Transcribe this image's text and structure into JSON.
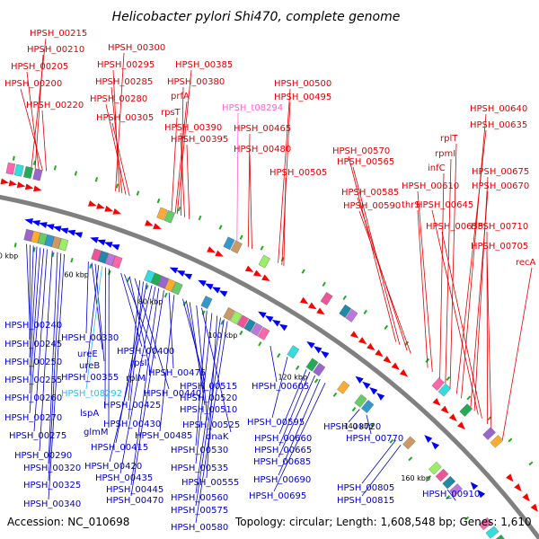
{
  "title": "Helicobacter pylori Shi470, complete genome",
  "footer": {
    "accession": "Accession: NC_010698",
    "summary": "Topology: circular; Length: 1,608,548 bp; Genes: 1,610"
  },
  "colors": {
    "forward_label": "#e00000",
    "reverse_label": "#0000cc",
    "rna_label_pink": "#ff66cc",
    "rna_label_cyan": "#33bbee",
    "forward_arrow": "#ff0000",
    "reverse_arrow": "#0000ff",
    "backbone": "#808080",
    "tick": "#22aa22"
  },
  "kbp_ticks": [
    {
      "text": "40 kbp"
    },
    {
      "text": "60 kbp"
    },
    {
      "text": "80 kbp"
    },
    {
      "text": "100 kbp"
    },
    {
      "text": "120 kbp"
    },
    {
      "text": "140 kbp"
    },
    {
      "text": "160 kbp"
    },
    {
      "text": "180 kbp"
    }
  ],
  "top_labels": [
    {
      "text": "HPSH_00215",
      "color": "forward"
    },
    {
      "text": "HPSH_00210",
      "color": "forward"
    },
    {
      "text": "HPSH_00205",
      "color": "forward"
    },
    {
      "text": "HPSH_00200",
      "color": "forward"
    },
    {
      "text": "HPSH_00220",
      "color": "forward"
    },
    {
      "text": "HPSH_00300",
      "color": "forward"
    },
    {
      "text": "HPSH_00295",
      "color": "forward"
    },
    {
      "text": "HPSH_00285",
      "color": "forward"
    },
    {
      "text": "HPSH_00280",
      "color": "forward"
    },
    {
      "text": "HPSH_00305",
      "color": "forward"
    },
    {
      "text": "HPSH_00385",
      "color": "forward"
    },
    {
      "text": "HPSH_00380",
      "color": "forward"
    },
    {
      "text": "prfA",
      "color": "forward"
    },
    {
      "text": "rpsT",
      "color": "forward"
    },
    {
      "text": "HPSH_00390",
      "color": "forward"
    },
    {
      "text": "HPSH_00395",
      "color": "forward"
    },
    {
      "text": "HPSH_t08294",
      "color": "pink"
    },
    {
      "text": "HPSH_00465",
      "color": "forward"
    },
    {
      "text": "HPSH_00480",
      "color": "forward"
    },
    {
      "text": "HPSH_00500",
      "color": "forward"
    },
    {
      "text": "HPSH_00495",
      "color": "forward"
    },
    {
      "text": "HPSH_00505",
      "color": "forward"
    },
    {
      "text": "HPSH_00570",
      "color": "forward"
    },
    {
      "text": "HPSH_00565",
      "color": "forward"
    },
    {
      "text": "HPSH_00585",
      "color": "forward"
    },
    {
      "text": "HPSH_00590",
      "color": "forward"
    },
    {
      "text": "HPSH_00640",
      "color": "forward"
    },
    {
      "text": "HPSH_00635",
      "color": "forward"
    },
    {
      "text": "rplT",
      "color": "forward"
    },
    {
      "text": "rpmI",
      "color": "forward"
    },
    {
      "text": "infC",
      "color": "forward"
    },
    {
      "text": "HPSH_00610",
      "color": "forward"
    },
    {
      "text": "thrS",
      "color": "forward"
    },
    {
      "text": "HPSH_00675",
      "color": "forward"
    },
    {
      "text": "HPSH_00670",
      "color": "forward"
    },
    {
      "text": "HPSH_00645",
      "color": "forward"
    },
    {
      "text": "HPSH_00655",
      "color": "forward"
    },
    {
      "text": "HPSH_00710",
      "color": "forward"
    },
    {
      "text": "HPSH_00705",
      "color": "forward"
    },
    {
      "text": "recA",
      "color": "forward"
    }
  ],
  "bottom_labels": [
    {
      "text": "HPSH_00240",
      "color": "reverse"
    },
    {
      "text": "HPSH_00245",
      "color": "reverse"
    },
    {
      "text": "HPSH_00250",
      "color": "reverse"
    },
    {
      "text": "HPSH_00255",
      "color": "reverse"
    },
    {
      "text": "HPSH_00260",
      "color": "reverse"
    },
    {
      "text": "HPSH_00270",
      "color": "reverse"
    },
    {
      "text": "HPSH_00275",
      "color": "reverse"
    },
    {
      "text": "HPSH_00290",
      "color": "reverse"
    },
    {
      "text": "HPSH_00320",
      "color": "reverse"
    },
    {
      "text": "HPSH_00325",
      "color": "reverse"
    },
    {
      "text": "HPSH_00340",
      "color": "reverse"
    },
    {
      "text": "HPSH_00330",
      "color": "reverse"
    },
    {
      "text": "ureE",
      "color": "reverse"
    },
    {
      "text": "ureB",
      "color": "reverse"
    },
    {
      "text": "HPSH_00355",
      "color": "reverse"
    },
    {
      "text": "HPSH_t08292",
      "color": "cyan"
    },
    {
      "text": "lspA",
      "color": "reverse"
    },
    {
      "text": "glmM",
      "color": "reverse"
    },
    {
      "text": "HPSH_00400",
      "color": "reverse"
    },
    {
      "text": "rpsI",
      "color": "reverse"
    },
    {
      "text": "rplM",
      "color": "reverse"
    },
    {
      "text": "HPSH_00440",
      "color": "reverse"
    },
    {
      "text": "HPSH_00425",
      "color": "reverse"
    },
    {
      "text": "HPSH_00430",
      "color": "reverse"
    },
    {
      "text": "HPSH_00415",
      "color": "reverse"
    },
    {
      "text": "HPSH_00420",
      "color": "reverse"
    },
    {
      "text": "HPSH_00435",
      "color": "reverse"
    },
    {
      "text": "HPSH_00445",
      "color": "reverse"
    },
    {
      "text": "HPSH_00470",
      "color": "reverse"
    },
    {
      "text": "HPSH_00475",
      "color": "reverse"
    },
    {
      "text": "HPSH_00485",
      "color": "reverse"
    },
    {
      "text": "HPSH_00515",
      "color": "reverse"
    },
    {
      "text": "HPSH_00520",
      "color": "reverse"
    },
    {
      "text": "HPSH_00510",
      "color": "reverse"
    },
    {
      "text": "HPSH_00525",
      "color": "reverse"
    },
    {
      "text": "dnaK",
      "color": "reverse"
    },
    {
      "text": "HPSH_00530",
      "color": "reverse"
    },
    {
      "text": "HPSH_00535",
      "color": "reverse"
    },
    {
      "text": "HPSH_00555",
      "color": "reverse"
    },
    {
      "text": "HPSH_00560",
      "color": "reverse"
    },
    {
      "text": "HPSH_00575",
      "color": "reverse"
    },
    {
      "text": "HPSH_00580",
      "color": "reverse"
    },
    {
      "text": "HPSH_00605",
      "color": "reverse"
    },
    {
      "text": "HPSH_00595",
      "color": "reverse"
    },
    {
      "text": "HPSH_00660",
      "color": "reverse"
    },
    {
      "text": "HPSH_00665",
      "color": "reverse"
    },
    {
      "text": "HPSH_00685",
      "color": "reverse"
    },
    {
      "text": "HPSH_00690",
      "color": "reverse"
    },
    {
      "text": "HPSH_00695",
      "color": "reverse"
    },
    {
      "text": "HPSH_00720",
      "color": "reverse"
    },
    {
      "text": "HPSH_00770",
      "color": "reverse"
    },
    {
      "text": "HPSH_00805",
      "color": "reverse"
    },
    {
      "text": "HPSH_00815",
      "color": "reverse"
    },
    {
      "text": "HPSH_00910",
      "color": "reverse"
    }
  ]
}
